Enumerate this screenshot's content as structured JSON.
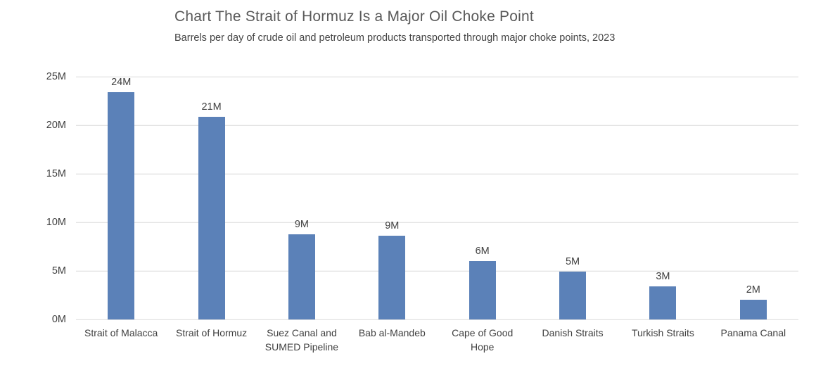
{
  "chart_data": {
    "type": "bar",
    "title": "Chart The Strait of Hormuz Is a Major Oil Choke Point",
    "subtitle": "Barrels per day of crude oil and petroleum products transported through major choke points, 2023",
    "categories": [
      "Strait of Malacca",
      "Strait of Hormuz",
      "Suez Canal and\nSUMED Pipeline",
      "Bab al-Mandeb",
      "Cape of Good\nHope",
      "Danish Straits",
      "Turkish Straits",
      "Panama Canal"
    ],
    "values": [
      23.7,
      20.9,
      8.8,
      8.6,
      6.0,
      4.9,
      3.4,
      2.0
    ],
    "bar_labels": [
      "24M",
      "21M",
      "9M",
      "9M",
      "6M",
      "5M",
      "3M",
      "2M"
    ],
    "unit": "M",
    "xlabel": "",
    "ylabel": "",
    "ylim": [
      0,
      25
    ],
    "yticks": [
      {
        "value": 0,
        "label": "0M"
      },
      {
        "value": 5,
        "label": "5M"
      },
      {
        "value": 10,
        "label": "10M"
      },
      {
        "value": 15,
        "label": "15M"
      },
      {
        "value": 20,
        "label": "20M"
      },
      {
        "value": 25,
        "label": "25M"
      }
    ],
    "grid": "horizontal",
    "legend": "none",
    "colors": {
      "bar": "#5b81b8",
      "gridline": "#d9d9d9",
      "title_text": "#595959",
      "axis_text": "#404040"
    }
  }
}
